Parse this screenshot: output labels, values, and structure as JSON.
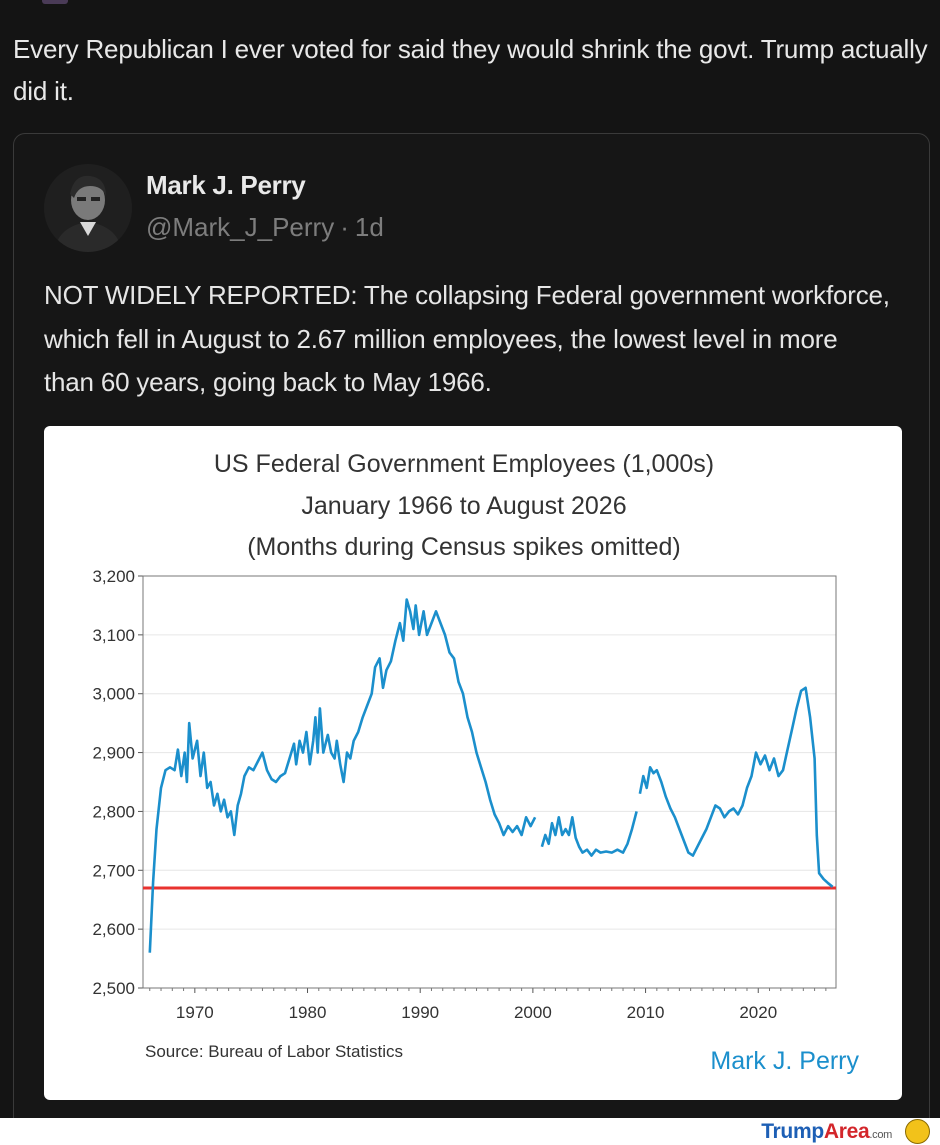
{
  "post": {
    "text": "Every Republican I ever voted for said they would shrink the govt. Trump actually did it."
  },
  "quote": {
    "author_name": "Mark J. Perry",
    "handle": "@Mark_J_Perry",
    "separator": "·",
    "age": "1d",
    "text": "NOT WIDELY REPORTED: The collapsing Federal government workforce, which fell in August to 2.67 million employees, the lowest level in more than 60 years, going back to May 1966."
  },
  "chart_data": {
    "type": "line",
    "title": "US Federal Government Employees (1,000s)",
    "subtitle": "January 1966 to August 2026",
    "subtitle2": "(Months during Census spikes omitted)",
    "xlim": [
      1965.4,
      2026.9
    ],
    "ylim": [
      2500,
      3200
    ],
    "x_ticks": [
      1970,
      1980,
      1990,
      2000,
      2010,
      2020
    ],
    "x_tick_labels": [
      "1970",
      "1980",
      "1990",
      "2000",
      "2010",
      "2020"
    ],
    "y_ticks": [
      2500,
      2600,
      2700,
      2800,
      2900,
      3000,
      3100,
      3200
    ],
    "y_tick_labels": [
      "2,500",
      "2,600",
      "2,700",
      "2,800",
      "2,900",
      "3,000",
      "3,100",
      "3,200"
    ],
    "grid": true,
    "source": "Source: Bureau of Labor Statistics",
    "credit": "Mark J. Perry",
    "reference_line": {
      "y": 2670,
      "color": "#e8322f"
    },
    "line_color": "#1b8fcc",
    "series": [
      {
        "segments": [
          [
            [
              1966.0,
              2560
            ],
            [
              1966.3,
              2680
            ],
            [
              1966.6,
              2770
            ],
            [
              1967.0,
              2840
            ],
            [
              1967.4,
              2870
            ],
            [
              1967.8,
              2875
            ],
            [
              1968.2,
              2870
            ],
            [
              1968.5,
              2905
            ],
            [
              1968.8,
              2860
            ],
            [
              1969.1,
              2900
            ],
            [
              1969.3,
              2850
            ],
            [
              1969.5,
              2950
            ],
            [
              1969.8,
              2890
            ],
            [
              1970.2,
              2920
            ],
            [
              1970.5,
              2860
            ],
            [
              1970.8,
              2900
            ],
            [
              1971.1,
              2840
            ],
            [
              1971.4,
              2850
            ],
            [
              1971.7,
              2810
            ],
            [
              1972.0,
              2830
            ],
            [
              1972.3,
              2800
            ],
            [
              1972.6,
              2820
            ],
            [
              1972.9,
              2790
            ],
            [
              1973.2,
              2800
            ],
            [
              1973.5,
              2760
            ],
            [
              1973.8,
              2810
            ],
            [
              1974.1,
              2830
            ],
            [
              1974.4,
              2860
            ],
            [
              1974.8,
              2875
            ],
            [
              1975.2,
              2870
            ],
            [
              1975.6,
              2885
            ],
            [
              1976.0,
              2900
            ],
            [
              1976.4,
              2870
            ],
            [
              1976.8,
              2855
            ],
            [
              1977.2,
              2850
            ],
            [
              1977.6,
              2860
            ],
            [
              1978.0,
              2865
            ],
            [
              1978.4,
              2890
            ],
            [
              1978.8,
              2915
            ],
            [
              1979.0,
              2880
            ],
            [
              1979.3,
              2920
            ],
            [
              1979.6,
              2900
            ],
            [
              1979.9,
              2935
            ],
            [
              1980.2,
              2880
            ],
            [
              1980.5,
              2920
            ],
            [
              1980.7,
              2960
            ],
            [
              1980.9,
              2900
            ],
            [
              1981.1,
              2975
            ],
            [
              1981.4,
              2900
            ],
            [
              1981.8,
              2930
            ],
            [
              1982.1,
              2900
            ],
            [
              1982.4,
              2890
            ],
            [
              1982.6,
              2920
            ],
            [
              1982.9,
              2880
            ],
            [
              1983.2,
              2850
            ],
            [
              1983.5,
              2900
            ],
            [
              1983.8,
              2890
            ],
            [
              1984.1,
              2920
            ],
            [
              1984.5,
              2935
            ],
            [
              1984.9,
              2960
            ],
            [
              1985.3,
              2980
            ],
            [
              1985.7,
              3000
            ],
            [
              1986.0,
              3045
            ],
            [
              1986.4,
              3060
            ],
            [
              1986.7,
              3010
            ],
            [
              1987.0,
              3040
            ],
            [
              1987.4,
              3055
            ],
            [
              1987.8,
              3090
            ],
            [
              1988.2,
              3120
            ],
            [
              1988.5,
              3090
            ],
            [
              1988.8,
              3160
            ],
            [
              1989.1,
              3140
            ],
            [
              1989.4,
              3110
            ],
            [
              1989.6,
              3150
            ],
            [
              1989.9,
              3100
            ],
            [
              1990.3,
              3140
            ],
            [
              1990.6,
              3100
            ],
            [
              1991.0,
              3120
            ],
            [
              1991.4,
              3140
            ],
            [
              1991.8,
              3120
            ],
            [
              1992.2,
              3100
            ],
            [
              1992.6,
              3070
            ],
            [
              1993.0,
              3060
            ],
            [
              1993.4,
              3020
            ],
            [
              1993.8,
              3000
            ],
            [
              1994.2,
              2960
            ],
            [
              1994.6,
              2935
            ],
            [
              1995.0,
              2900
            ],
            [
              1995.4,
              2875
            ],
            [
              1995.8,
              2850
            ],
            [
              1996.2,
              2820
            ],
            [
              1996.6,
              2795
            ],
            [
              1997.0,
              2780
            ],
            [
              1997.4,
              2760
            ],
            [
              1997.8,
              2775
            ],
            [
              1998.2,
              2765
            ],
            [
              1998.6,
              2775
            ],
            [
              1999.0,
              2760
            ],
            [
              1999.4,
              2790
            ],
            [
              1999.8,
              2775
            ],
            [
              2000.2,
              2790
            ]
          ],
          [
            [
              2000.8,
              2740
            ],
            [
              2001.1,
              2760
            ],
            [
              2001.4,
              2745
            ],
            [
              2001.7,
              2780
            ],
            [
              2002.0,
              2760
            ],
            [
              2002.3,
              2790
            ],
            [
              2002.6,
              2760
            ],
            [
              2002.9,
              2770
            ],
            [
              2003.2,
              2760
            ],
            [
              2003.5,
              2790
            ],
            [
              2003.8,
              2755
            ],
            [
              2004.1,
              2740
            ],
            [
              2004.4,
              2730
            ],
            [
              2004.8,
              2735
            ],
            [
              2005.2,
              2725
            ],
            [
              2005.6,
              2735
            ],
            [
              2006.0,
              2730
            ],
            [
              2006.5,
              2732
            ],
            [
              2007.0,
              2730
            ],
            [
              2007.5,
              2735
            ],
            [
              2008.0,
              2730
            ],
            [
              2008.4,
              2745
            ],
            [
              2008.8,
              2770
            ],
            [
              2009.2,
              2800
            ]
          ],
          [
            [
              2009.5,
              2830
            ],
            [
              2009.8,
              2860
            ],
            [
              2010.1,
              2840
            ],
            [
              2010.4,
              2875
            ],
            [
              2010.7,
              2865
            ],
            [
              2011.0,
              2870
            ],
            [
              2011.4,
              2850
            ],
            [
              2011.8,
              2825
            ],
            [
              2012.2,
              2805
            ],
            [
              2012.6,
              2790
            ],
            [
              2013.0,
              2770
            ],
            [
              2013.4,
              2750
            ],
            [
              2013.8,
              2730
            ],
            [
              2014.2,
              2725
            ],
            [
              2014.6,
              2740
            ],
            [
              2015.0,
              2755
            ],
            [
              2015.4,
              2770
            ],
            [
              2015.8,
              2790
            ],
            [
              2016.2,
              2810
            ],
            [
              2016.6,
              2805
            ],
            [
              2017.0,
              2790
            ],
            [
              2017.4,
              2800
            ],
            [
              2017.8,
              2805
            ],
            [
              2018.2,
              2795
            ],
            [
              2018.6,
              2810
            ],
            [
              2019.0,
              2840
            ],
            [
              2019.4,
              2860
            ],
            [
              2019.8,
              2900
            ],
            [
              2020.2,
              2880
            ],
            [
              2020.6,
              2895
            ],
            [
              2021.0,
              2870
            ],
            [
              2021.4,
              2890
            ],
            [
              2021.8,
              2860
            ],
            [
              2022.2,
              2870
            ],
            [
              2022.6,
              2905
            ],
            [
              2023.0,
              2940
            ],
            [
              2023.4,
              2975
            ],
            [
              2023.8,
              3005
            ],
            [
              2024.2,
              3010
            ],
            [
              2024.6,
              2960
            ],
            [
              2025.0,
              2890
            ],
            [
              2025.2,
              2760
            ],
            [
              2025.4,
              2695
            ],
            [
              2025.8,
              2685
            ],
            [
              2026.2,
              2678
            ],
            [
              2026.6,
              2672
            ]
          ]
        ]
      }
    ]
  },
  "footer": {
    "brand_part1": "Trump",
    "brand_part2": "Area",
    "brand_part3": ".com"
  }
}
